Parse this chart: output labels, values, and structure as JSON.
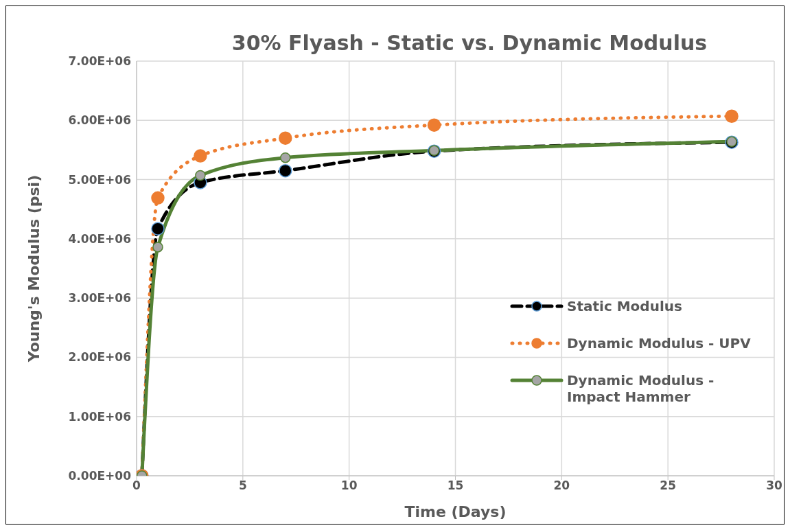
{
  "chart_data": {
    "type": "line",
    "title": "30% Flyash - Static vs. Dynamic Modulus",
    "xlabel": "Time (Days)",
    "ylabel": "Young's Modulus (psi)",
    "x": [
      0.25,
      1,
      3,
      7,
      14,
      28
    ],
    "series": [
      {
        "name": "Static Modulus",
        "color": "#000000",
        "line_style": "dashed",
        "values": [
          0,
          4170000,
          4950000,
          5150000,
          5480000,
          5630000
        ]
      },
      {
        "name": "Dynamic Modulus - UPV",
        "color": "#ed7d31",
        "line_style": "dotted",
        "values": [
          0,
          4690000,
          5400000,
          5700000,
          5920000,
          6070000
        ]
      },
      {
        "name": "Dynamic Modulus - Impact Hammer",
        "color": "#548235",
        "line_style": "solid",
        "values": [
          0,
          3860000,
          5070000,
          5370000,
          5490000,
          5640000
        ]
      }
    ],
    "xlim": [
      0,
      30
    ],
    "xticks": [
      0,
      5,
      10,
      15,
      20,
      25,
      30
    ],
    "ylim": [
      0,
      7000000
    ],
    "yticks": [
      {
        "value": 0,
        "label": "0.00E+00"
      },
      {
        "value": 1000000,
        "label": "1.00E+06"
      },
      {
        "value": 2000000,
        "label": "2.00E+06"
      },
      {
        "value": 3000000,
        "label": "3.00E+06"
      },
      {
        "value": 4000000,
        "label": "4.00E+06"
      },
      {
        "value": 5000000,
        "label": "5.00E+06"
      },
      {
        "value": 6000000,
        "label": "6.00E+06"
      },
      {
        "value": 7000000,
        "label": "7.00E+06"
      }
    ],
    "grid": true,
    "legend": "right",
    "marker": "circle"
  }
}
